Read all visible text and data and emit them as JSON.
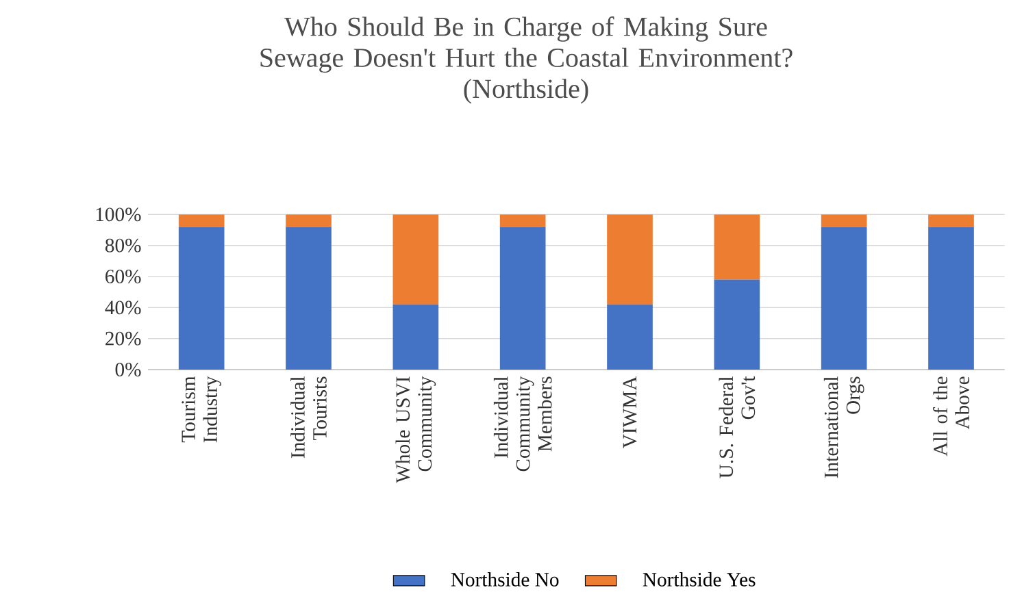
{
  "chart_data": {
    "type": "bar",
    "title": "Who Should Be in Charge of Making Sure Sewage Doesn't Hurt the Coastal Environment?",
    "subtitle": "(Northside)",
    "categories": [
      "Tourism Industry",
      "Individual Tourists",
      "Whole USVI Community",
      "Individual Community Members",
      "VIWMA",
      "U.S. Federal Gov't",
      "International Orgs",
      "All of the Above"
    ],
    "series": [
      {
        "name": "Northside No",
        "color": "#4472c4",
        "values": [
          92,
          92,
          42,
          92,
          42,
          58,
          92,
          92
        ]
      },
      {
        "name": "Northside Yes",
        "color": "#ed7d31",
        "values": [
          8,
          8,
          58,
          8,
          58,
          42,
          8,
          8
        ]
      }
    ],
    "stacked": true,
    "ylim": [
      0,
      100
    ],
    "yticks": [
      {
        "value": 0,
        "label": "0%"
      },
      {
        "value": 20,
        "label": "20%"
      },
      {
        "value": 40,
        "label": "40%"
      },
      {
        "value": 60,
        "label": "60%"
      },
      {
        "value": 80,
        "label": "80%"
      },
      {
        "value": 100,
        "label": "100%"
      }
    ],
    "grid": "y",
    "legend": "bottom"
  }
}
